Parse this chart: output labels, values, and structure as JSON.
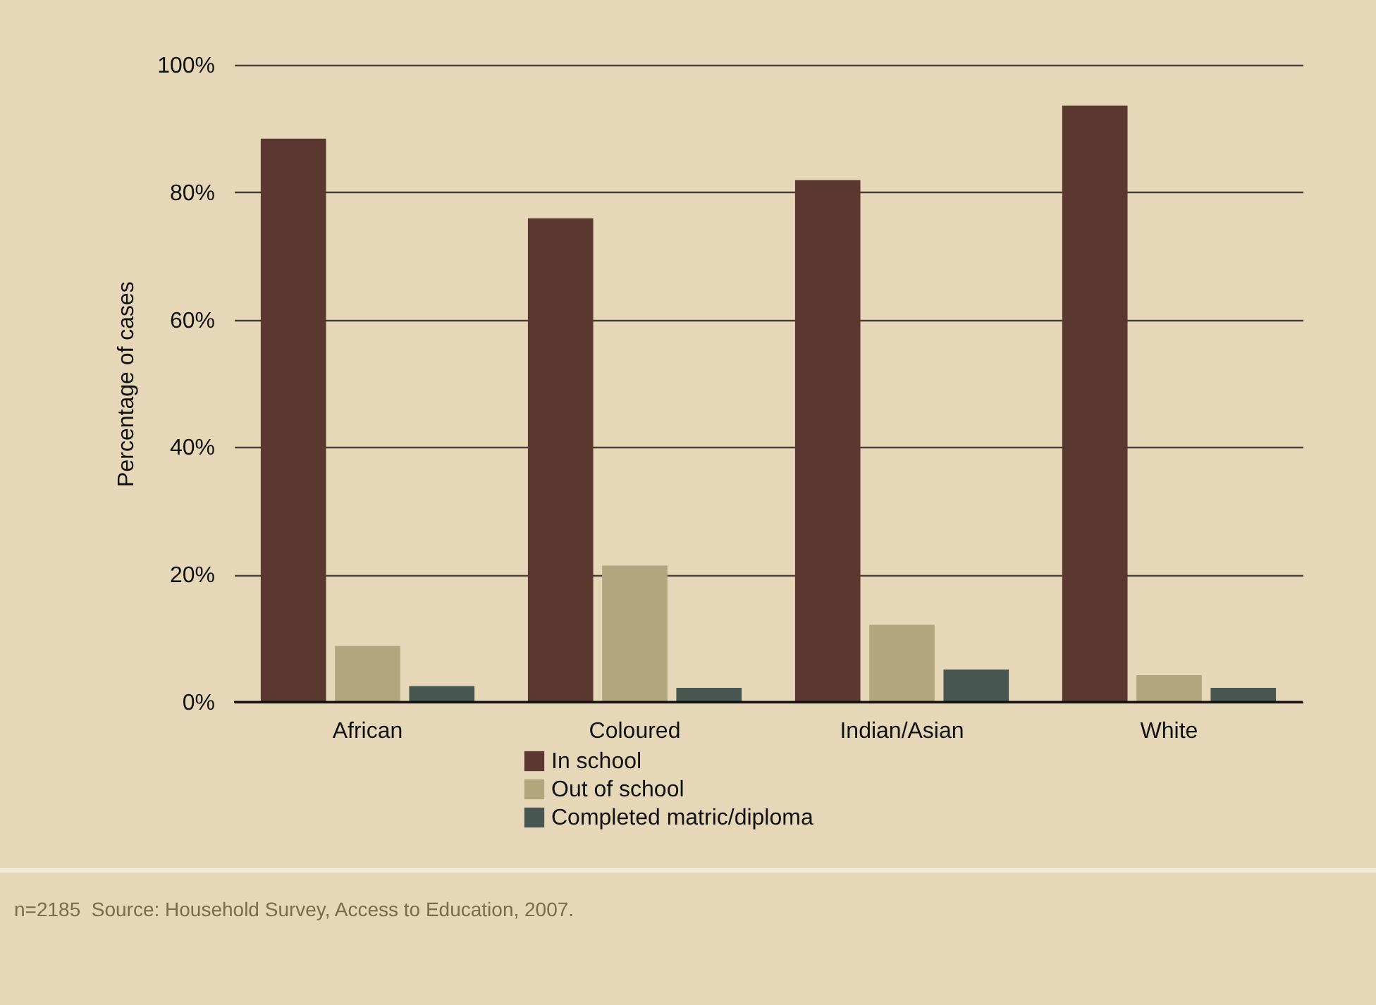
{
  "chart_data": {
    "type": "bar",
    "categories": [
      "African",
      "Coloured",
      "Indian/Asian",
      "White"
    ],
    "series": [
      {
        "name": "In school",
        "color": "#5a372f",
        "values": [
          88.4,
          75.9,
          81.9,
          93.6
        ]
      },
      {
        "name": "Out of school",
        "color": "#b3a57e",
        "values": [
          8.8,
          21.4,
          12.1,
          4.2
        ]
      },
      {
        "name": "Completed matric/diploma",
        "color": "#475650",
        "values": [
          2.5,
          2.2,
          5.1,
          2.2
        ]
      }
    ],
    "ylabel": "Percentage of cases",
    "ylim": [
      0,
      100
    ],
    "yticks": [
      {
        "value": 0,
        "label": "0%"
      },
      {
        "value": 20,
        "label": "20%"
      },
      {
        "value": 40,
        "label": "40%"
      },
      {
        "value": 60,
        "label": "60%"
      },
      {
        "value": 80,
        "label": "80%"
      },
      {
        "value": 100,
        "label": "100%"
      }
    ],
    "grid": "y",
    "legend": "bottom",
    "annotations": [
      "n=2185  Source: Household Survey, Access to Education, 2007."
    ]
  }
}
